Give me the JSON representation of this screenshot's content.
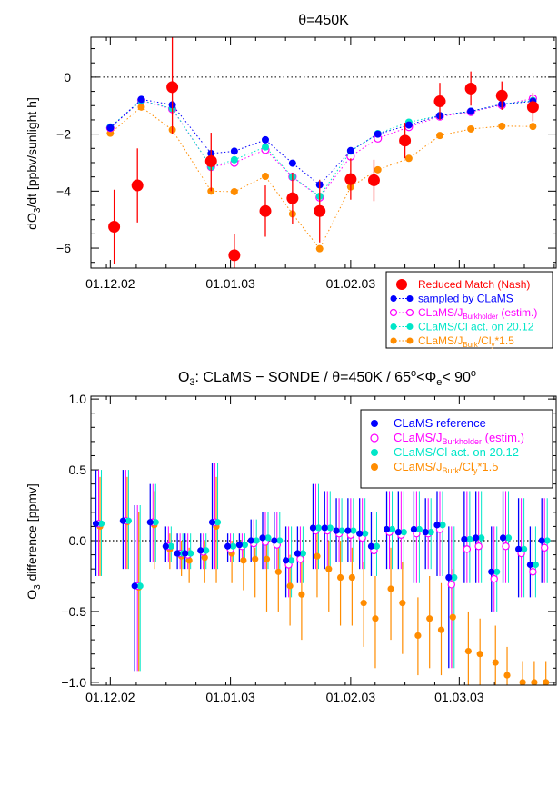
{
  "colors": {
    "red": "#ff0000",
    "blue": "#0000ff",
    "magenta": "#ff00ff",
    "cyan": "#00e6c8",
    "orange": "#ff8c00"
  },
  "chart_data": [
    {
      "type": "line",
      "title": "θ=450K",
      "ylabel": "dO3/dt [ppbv/sunlight h]",
      "xlim": [
        "2002-11-26",
        "2003-03-26"
      ],
      "ylim": [
        -6.7,
        1.4
      ],
      "yticks": [
        0,
        -2,
        -4,
        -6
      ],
      "ytick_labels": [
        "0",
        "−2",
        "−4",
        "−6"
      ],
      "xticks": [
        "2002-12-01",
        "2003-01-01",
        "2003-02-01",
        "2003-03-01"
      ],
      "xtick_labels": [
        "01.12.02",
        "01.01.03",
        "01.02.03",
        "01.03.03"
      ],
      "zero_line": true,
      "legend_position": "lower-right",
      "legend": [
        {
          "label": "Reduced Match (Nash)"
        },
        {
          "label": "sampled by CLaMS"
        },
        {
          "label": "CLaMS/JBurkholder (estim.)",
          "main": "CLaMS/J",
          "sub": "Burkholder",
          "after": " (estim.)"
        },
        {
          "label": "CLaMS/Cl act. on 20.12"
        },
        {
          "label": "CLaMS/JBurk/Cly*1.5",
          "main": "CLaMS/J",
          "sub": "Burk",
          "after": "/Cl",
          "sub2": "y",
          "after2": "*1.5"
        }
      ],
      "match_points": [
        {
          "x": "2002-12-02",
          "y": -5.25,
          "lo": -6.55,
          "hi": -3.95
        },
        {
          "x": "2002-12-08",
          "y": -3.8,
          "lo": -5.1,
          "hi": -2.5
        },
        {
          "x": "2002-12-17",
          "y": -0.35,
          "lo": -2.0,
          "hi": 1.4
        },
        {
          "x": "2002-12-27",
          "y": -2.95,
          "lo": -4.0,
          "hi": -1.95
        },
        {
          "x": "2003-01-02",
          "y": -6.25,
          "lo": -6.7,
          "hi": -5.5
        },
        {
          "x": "2003-01-10",
          "y": -4.7,
          "lo": -5.6,
          "hi": -3.8
        },
        {
          "x": "2003-01-17",
          "y": -4.25,
          "lo": -5.15,
          "hi": -3.35
        },
        {
          "x": "2003-01-24",
          "y": -4.7,
          "lo": -5.8,
          "hi": -3.6
        },
        {
          "x": "2003-02-01",
          "y": -3.58,
          "lo": -4.3,
          "hi": -2.85
        },
        {
          "x": "2003-02-07",
          "y": -3.62,
          "lo": -4.35,
          "hi": -2.9
        },
        {
          "x": "2003-02-15",
          "y": -2.23,
          "lo": -2.85,
          "hi": -1.6
        },
        {
          "x": "2003-02-24",
          "y": -0.85,
          "lo": -1.5,
          "hi": -0.2
        },
        {
          "x": "2003-03-04",
          "y": -0.4,
          "lo": -1.0,
          "hi": 0.2
        },
        {
          "x": "2003-03-12",
          "y": -0.65,
          "lo": -1.15,
          "hi": -0.15
        },
        {
          "x": "2003-03-20",
          "y": -1.05,
          "lo": -1.55,
          "hi": -0.55
        }
      ],
      "x_model": [
        "2002-12-01",
        "2002-12-09",
        "2002-12-17",
        "2002-12-27",
        "2003-01-02",
        "2003-01-10",
        "2003-01-17",
        "2003-01-24",
        "2003-02-01",
        "2003-02-08",
        "2003-02-16",
        "2003-02-24",
        "2003-03-04",
        "2003-03-12",
        "2003-03-20"
      ],
      "series": [
        {
          "name": "sampled by CLaMS",
          "values": [
            -1.78,
            -0.78,
            -0.97,
            -2.68,
            -2.6,
            -2.2,
            -3.02,
            -3.78,
            -2.58,
            -2.0,
            -1.68,
            -1.35,
            -1.2,
            -0.95,
            -0.85
          ]
        },
        {
          "name": "CLaMS/JBurkholder (estim.)",
          "values": [
            -1.78,
            -0.82,
            -1.12,
            -3.15,
            -3.0,
            -2.55,
            -3.5,
            -4.22,
            -2.78,
            -2.15,
            -1.75,
            -1.38,
            -1.22,
            -0.98,
            -0.75
          ]
        },
        {
          "name": "CLaMS/Cl act. on 20.12",
          "values": [
            -1.75,
            -0.82,
            -1.1,
            -3.15,
            -2.9,
            -2.45,
            -3.5,
            -4.18,
            -2.6,
            -1.98,
            -1.58,
            -1.35,
            -1.2,
            -0.95,
            -0.82
          ]
        },
        {
          "name": "CLaMS/JBurk/Cly*1.5",
          "values": [
            -1.97,
            -1.05,
            -1.85,
            -4.0,
            -4.02,
            -3.48,
            -4.8,
            -6.02,
            -3.85,
            -3.25,
            -2.85,
            -2.05,
            -1.82,
            -1.72,
            -1.73
          ]
        }
      ]
    },
    {
      "type": "scatter",
      "title": "O3: CLaMS − SONDE / θ=450K /  65°<Φe< 90°",
      "ylabel": "O3 difference  [ppmv]",
      "xlim": [
        "2002-11-26",
        "2003-03-26"
      ],
      "ylim": [
        -1.02,
        1.02
      ],
      "yticks": [
        1.0,
        0.5,
        0.0,
        -0.5,
        -1.0
      ],
      "ytick_labels": [
        "1.0",
        "0.5",
        "0.0",
        "−0.5",
        "−1.0"
      ],
      "xticks": [
        "2002-12-01",
        "2003-01-01",
        "2003-02-01",
        "2003-03-01"
      ],
      "xtick_labels": [
        "01.12.02",
        "01.01.03",
        "01.02.03",
        "01.03.03"
      ],
      "zero_line": true,
      "legend_position": "top-right",
      "legend": [
        {
          "label": "CLaMS reference"
        },
        {
          "label": "CLaMS/JBurkholder (estim.)",
          "main": "CLaMS/J",
          "sub": "Burkholder",
          "after": " (estim.)"
        },
        {
          "label": "CLaMS/Cl act. on 20.12"
        },
        {
          "label": "CLaMS/JBurk/Cly*1.5",
          "main": "CLaMS/J",
          "sub": "Burk",
          "after": "/Cl",
          "sub2": "y",
          "after2": "*1.5"
        }
      ],
      "sonde_dates": [
        "2002-11-28",
        "2002-12-05",
        "2002-12-08",
        "2002-12-12",
        "2002-12-16",
        "2002-12-19",
        "2002-12-21",
        "2002-12-25",
        "2002-12-28",
        "2003-01-01",
        "2003-01-04",
        "2003-01-07",
        "2003-01-10",
        "2003-01-13",
        "2003-01-16",
        "2003-01-19",
        "2003-01-23",
        "2003-01-26",
        "2003-01-29",
        "2003-02-01",
        "2003-02-04",
        "2003-02-07",
        "2003-02-11",
        "2003-02-14",
        "2003-02-18",
        "2003-02-21",
        "2003-02-24",
        "2003-02-27",
        "2003-03-03",
        "2003-03-06",
        "2003-03-10",
        "2003-03-13",
        "2003-03-17",
        "2003-03-20",
        "2003-03-23"
      ],
      "series": [
        {
          "name": "CLaMS reference",
          "values": [
            0.12,
            0.14,
            -0.32,
            0.13,
            -0.04,
            -0.09,
            -0.09,
            -0.07,
            0.13,
            -0.04,
            -0.03,
            0.0,
            0.02,
            0.0,
            -0.14,
            -0.09,
            0.09,
            0.09,
            0.07,
            0.07,
            0.05,
            -0.04,
            0.08,
            0.06,
            0.08,
            0.06,
            0.11,
            -0.26,
            0.01,
            0.02,
            -0.22,
            0.02,
            -0.06,
            -0.17,
            0.0
          ],
          "err_lo": [
            -0.25,
            -0.2,
            -0.92,
            -0.15,
            -0.15,
            -0.2,
            -0.2,
            -0.2,
            -0.2,
            -0.15,
            -0.15,
            -0.15,
            -0.2,
            -0.2,
            -0.4,
            -0.3,
            -0.2,
            -0.2,
            -0.15,
            -0.15,
            -0.2,
            -0.25,
            -0.2,
            -0.2,
            -0.3,
            -0.2,
            -0.25,
            -0.9,
            -0.3,
            -0.3,
            -0.5,
            -0.3,
            -0.4,
            -0.4,
            -0.3
          ],
          "err_hi": [
            0.5,
            0.5,
            0.25,
            0.4,
            0.1,
            0.05,
            0.05,
            0.05,
            0.55,
            0.05,
            0.05,
            0.15,
            0.2,
            0.2,
            0.1,
            0.1,
            0.4,
            0.35,
            0.3,
            0.3,
            0.3,
            0.2,
            0.35,
            0.35,
            0.35,
            0.3,
            0.35,
            0.1,
            0.35,
            0.35,
            0.1,
            0.35,
            0.3,
            0.1,
            0.3
          ]
        },
        {
          "name": "CLaMS/JBurkholder (estim.)",
          "values": [
            0.12,
            0.14,
            -0.32,
            0.13,
            -0.04,
            -0.09,
            -0.1,
            -0.08,
            0.13,
            -0.06,
            -0.04,
            -0.02,
            -0.01,
            -0.03,
            -0.17,
            -0.13,
            0.07,
            0.07,
            0.05,
            0.04,
            0.02,
            -0.07,
            0.06,
            0.04,
            0.05,
            0.05,
            0.08,
            -0.31,
            -0.06,
            -0.04,
            -0.27,
            -0.04,
            -0.09,
            -0.22,
            -0.05
          ]
        },
        {
          "name": "CLaMS/Cl act. on 20.12",
          "values": [
            0.12,
            0.14,
            -0.32,
            0.13,
            -0.04,
            -0.09,
            -0.09,
            -0.07,
            0.13,
            -0.04,
            -0.03,
            0.0,
            0.02,
            0.0,
            -0.14,
            -0.09,
            0.09,
            0.09,
            0.07,
            0.07,
            0.05,
            -0.04,
            0.08,
            0.06,
            0.08,
            0.06,
            0.11,
            -0.26,
            0.01,
            0.02,
            -0.22,
            0.02,
            -0.06,
            -0.17,
            0.0
          ]
        },
        {
          "name": "CLaMS/JBurk/Cly*1.5",
          "values": [
            0.1,
            0.13,
            -0.33,
            0.11,
            -0.06,
            -0.11,
            -0.14,
            -0.12,
            0.1,
            -0.09,
            -0.14,
            -0.13,
            -0.13,
            -0.22,
            -0.32,
            -0.38,
            -0.11,
            -0.2,
            -0.26,
            -0.26,
            -0.44,
            -0.55,
            -0.34,
            -0.44,
            -0.67,
            -0.55,
            -0.63,
            -0.54,
            -0.78,
            -0.8,
            -0.86,
            -0.95,
            -1.0,
            -1.0,
            -1.0
          ],
          "err_lo": [
            -0.25,
            -0.2,
            -0.92,
            -0.2,
            -0.2,
            -0.25,
            -0.3,
            -0.3,
            -0.3,
            -0.3,
            -0.35,
            -0.4,
            -0.5,
            -0.5,
            -0.6,
            -0.7,
            -0.4,
            -0.5,
            -0.6,
            -0.6,
            -0.75,
            -0.9,
            -0.7,
            -0.8,
            -0.95,
            -0.9,
            -0.95,
            -0.9,
            -1.02,
            -1.02,
            -1.02,
            -1.02,
            -1.02,
            -1.02,
            -1.02
          ],
          "err_hi": [
            0.45,
            0.45,
            0.2,
            0.35,
            0.05,
            0.0,
            -0.05,
            0.0,
            0.45,
            0.0,
            -0.05,
            -0.05,
            0.0,
            -0.05,
            -0.1,
            -0.1,
            0.1,
            0.0,
            0.0,
            -0.05,
            -0.15,
            -0.25,
            -0.05,
            -0.15,
            -0.4,
            -0.25,
            -0.3,
            -0.2,
            -0.5,
            -0.55,
            -0.6,
            -0.75,
            -0.85,
            -0.85,
            -0.85
          ]
        }
      ]
    }
  ]
}
